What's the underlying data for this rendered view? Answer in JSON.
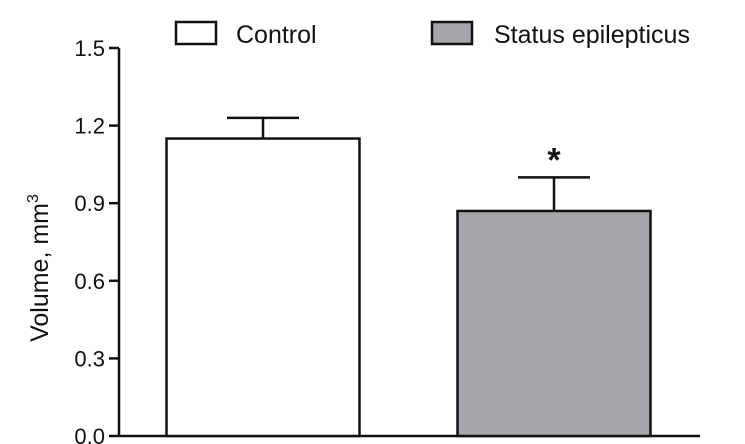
{
  "chart_data": {
    "type": "bar",
    "categories": [
      "Control",
      "Status epilepticus"
    ],
    "values": [
      1.15,
      0.87
    ],
    "error_bars": [
      0.08,
      0.13
    ],
    "fill_colors": [
      "#ffffff",
      "#a6a6aa"
    ],
    "edge_color": "#111111",
    "title": "",
    "xlabel": "",
    "ylabel": "Volume, mm",
    "ylabel_superscript": "3",
    "ylim": [
      0,
      1.5
    ],
    "yticks": [
      "0.0",
      "0.3",
      "0.6",
      "0.9",
      "1.2",
      "1.5"
    ],
    "ytick_values": [
      0.0,
      0.3,
      0.6,
      0.9,
      1.2,
      1.5
    ],
    "legend": {
      "position": "top",
      "entries": [
        {
          "label": "Control",
          "color": "#ffffff"
        },
        {
          "label": "Status epilepticus",
          "color": "#a6a6aa"
        }
      ]
    },
    "annotations": [
      {
        "text": "*",
        "category": "Status epilepticus"
      }
    ],
    "grid": false
  }
}
